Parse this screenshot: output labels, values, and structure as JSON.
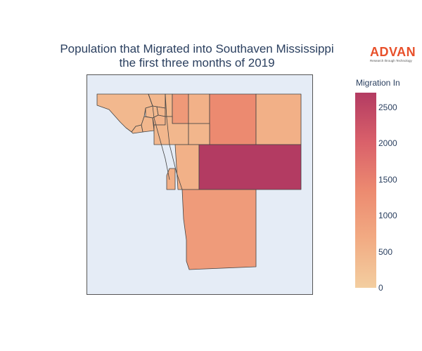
{
  "title": {
    "line1": "Population that Migrated into Southaven Mississippi",
    "line2": "the first three months of 2019"
  },
  "logo": {
    "name": "ADVAN",
    "tagline": "Research through Technology"
  },
  "chart_data": {
    "type": "choropleth",
    "colorbar_title": "Migration In",
    "colorbar_ticks": [
      0,
      500,
      1000,
      1500,
      2000,
      2500
    ],
    "color_range": [
      0,
      2700
    ],
    "colorscale": [
      "#f3cea0",
      "#f2ab83",
      "#ec8a70",
      "#d9606a",
      "#b33b62"
    ],
    "regions_migration_in": [
      430,
      450,
      420,
      460,
      440,
      520,
      400,
      430,
      410,
      1050,
      560,
      1350,
      580,
      440,
      470,
      560,
      600,
      2700,
      1000
    ]
  }
}
